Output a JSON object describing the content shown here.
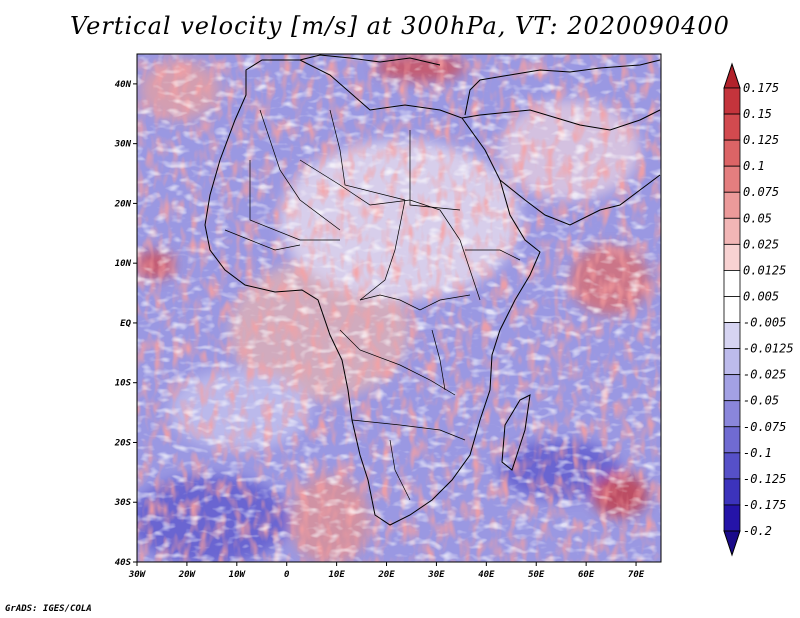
{
  "chart_data": {
    "type": "heatmap",
    "title": "Vertical velocity [m/s] at 300hPa, VT: 2020090400",
    "variable": "Vertical velocity",
    "units": "m/s",
    "level": "300hPa",
    "valid_time": "2020090400",
    "region": "Africa",
    "x_axis": {
      "range": [
        -30,
        75
      ],
      "ticks": [
        -30,
        -20,
        -10,
        0,
        10,
        20,
        30,
        40,
        50,
        60,
        70
      ],
      "tick_labels": [
        "30W",
        "20W",
        "10W",
        "0",
        "10E",
        "20E",
        "30E",
        "40E",
        "50E",
        "60E",
        "70E"
      ]
    },
    "y_axis": {
      "range": [
        -40,
        45
      ],
      "ticks": [
        -40,
        -30,
        -20,
        -10,
        0,
        10,
        20,
        30,
        40
      ],
      "tick_labels": [
        "40S",
        "30S",
        "20S",
        "10S",
        "EQ",
        "10N",
        "20N",
        "30N",
        "40N"
      ]
    },
    "colorbar": {
      "levels": [
        "0.175",
        "0.15",
        "0.125",
        "0.1",
        "0.075",
        "0.05",
        "0.025",
        "0.0125",
        "0.005",
        "-0.005",
        "-0.0125",
        "-0.025",
        "-0.05",
        "-0.075",
        "-0.1",
        "-0.125",
        "-0.175",
        "-0.2"
      ],
      "colors": [
        "#b2222b",
        "#c4343c",
        "#d24a4f",
        "#dc6466",
        "#e47e7f",
        "#ec9a9a",
        "#f2b6b6",
        "#f8d2d2",
        "#ffffff",
        "#ffffff",
        "#d6d4f2",
        "#bdbbec",
        "#a3a1e4",
        "#8a86db",
        "#706bd2",
        "#5650c8",
        "#3c33bc",
        "#2514a8",
        "#1a0a8a"
      ]
    }
  },
  "credit": "GrADS: IGES/COLA"
}
